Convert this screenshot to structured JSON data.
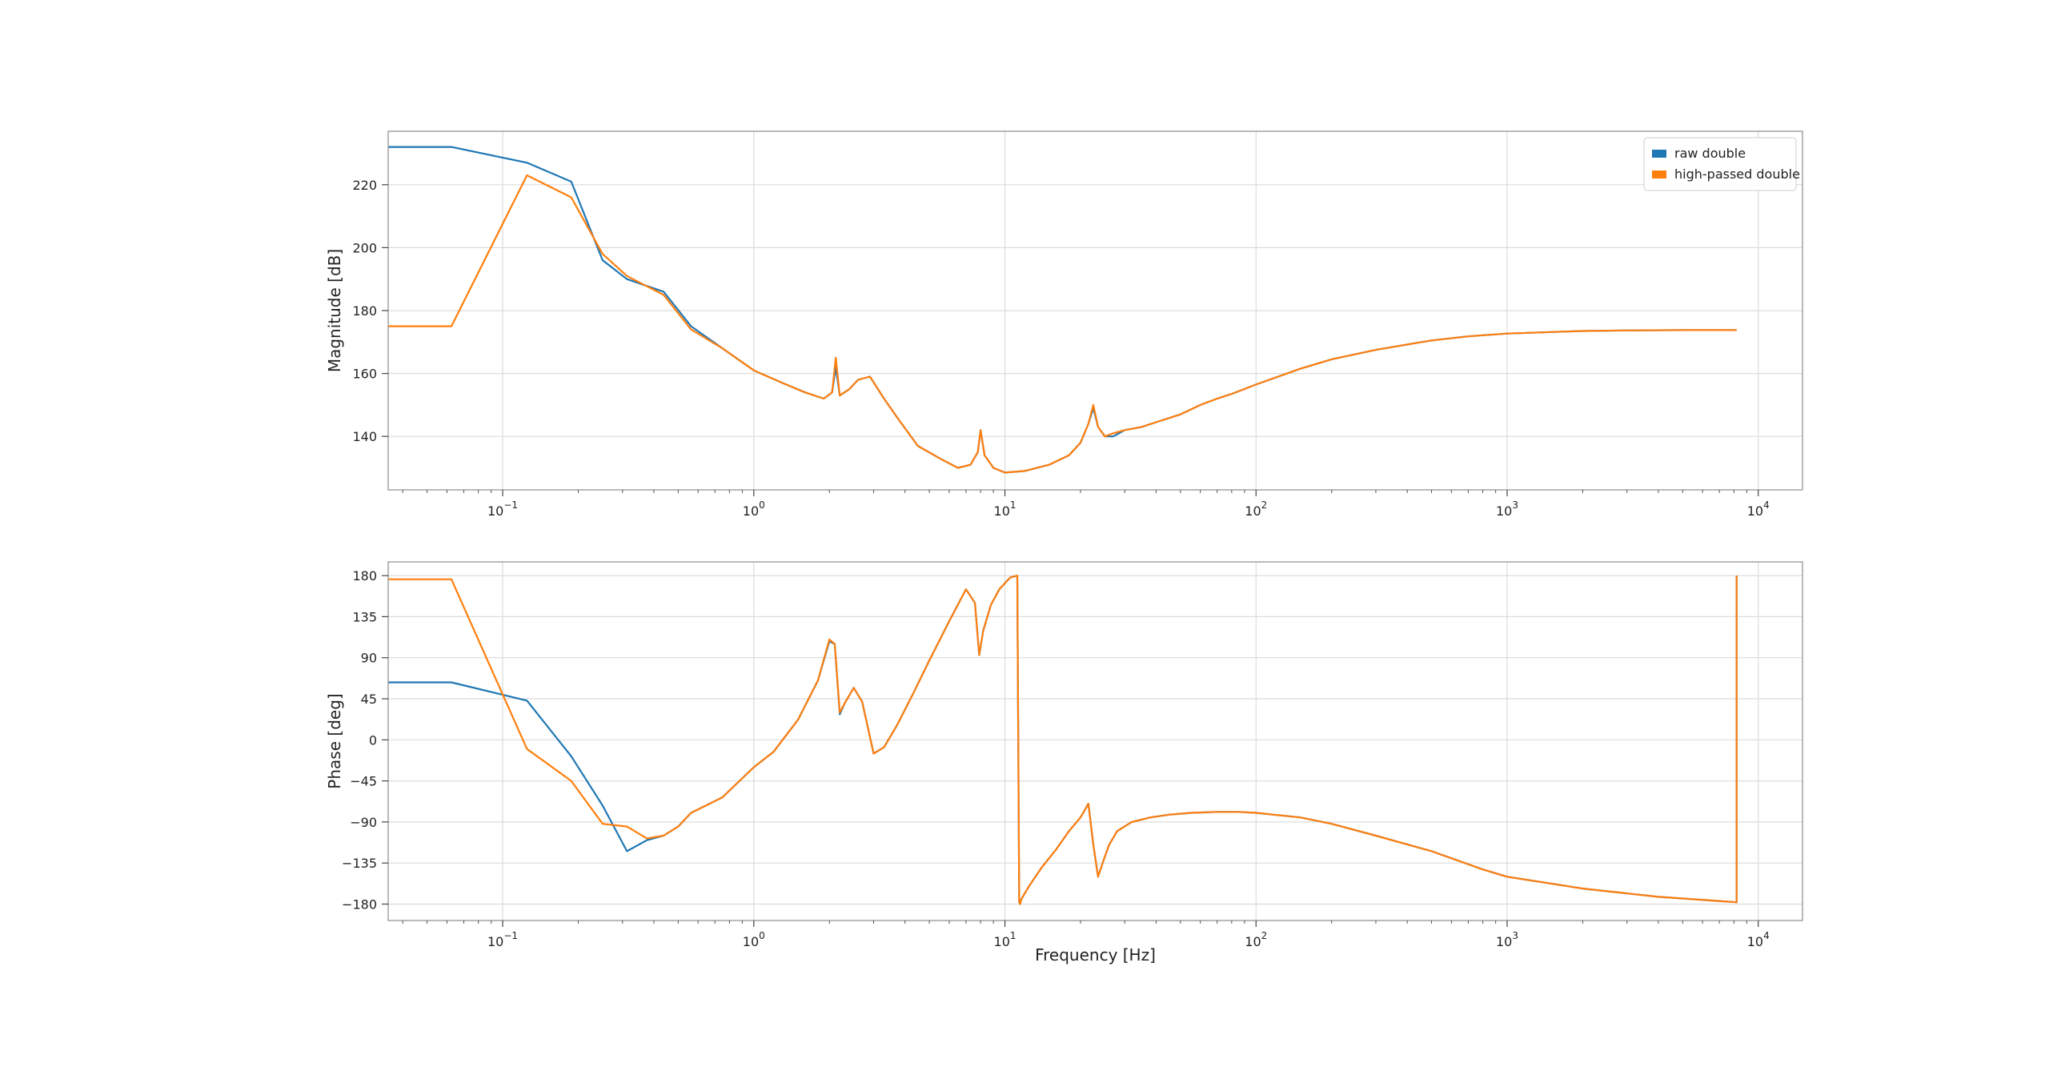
{
  "chart_data": [
    {
      "type": "line",
      "panel": "magnitude",
      "xscale": "log",
      "xlim": [
        0.035,
        15000
      ],
      "ylim": [
        123,
        237
      ],
      "xlabel": "",
      "ylabel": "Magnitude [dB]",
      "grid": true,
      "legend_position": "top-right",
      "x_ticks": [
        {
          "value": 0.1,
          "base": "10",
          "exp": "−1"
        },
        {
          "value": 1,
          "base": "10",
          "exp": "0"
        },
        {
          "value": 10,
          "base": "10",
          "exp": "1"
        },
        {
          "value": 100,
          "base": "10",
          "exp": "2"
        },
        {
          "value": 1000,
          "base": "10",
          "exp": "3"
        },
        {
          "value": 10000,
          "base": "10",
          "exp": "4"
        }
      ],
      "y_ticks": [
        {
          "value": 140,
          "label": "140"
        },
        {
          "value": 160,
          "label": "160"
        },
        {
          "value": 180,
          "label": "180"
        },
        {
          "value": 200,
          "label": "200"
        },
        {
          "value": 220,
          "label": "220"
        }
      ],
      "series": [
        {
          "name": "raw double",
          "color": "#1f77b4",
          "x": [
            0.035,
            0.0625,
            0.125,
            0.1875,
            0.25,
            0.3125,
            0.4375,
            0.5625,
            0.75,
            1.0,
            1.3,
            1.6,
            1.9,
            2.05,
            2.12,
            2.2,
            2.4,
            2.6,
            2.9,
            3.3,
            3.8,
            4.5,
            5.5,
            6.5,
            7.3,
            7.8,
            8.0,
            8.3,
            9.0,
            10.0,
            12,
            15,
            18,
            20,
            21.5,
            22.5,
            23.5,
            25,
            27,
            30,
            35,
            40,
            50,
            60,
            70,
            80,
            100,
            150,
            200,
            300,
            500,
            700,
            1000,
            2000,
            3000,
            5000,
            8200
          ],
          "y": [
            232,
            232,
            227,
            221,
            196,
            190,
            186,
            175,
            168,
            161,
            157,
            154,
            152,
            154,
            162,
            153,
            155,
            158,
            159,
            152,
            145,
            137,
            133,
            130,
            131,
            135,
            142,
            134,
            130,
            128.5,
            129,
            131,
            134,
            138,
            144,
            149,
            143,
            140,
            140,
            142,
            143,
            144.5,
            147,
            150,
            152,
            153.5,
            156.5,
            161.5,
            164.5,
            167.5,
            170.5,
            171.8,
            172.7,
            173.5,
            173.7,
            173.8,
            173.8
          ]
        },
        {
          "name": "high-passed double",
          "color": "#ff7f0e",
          "x": [
            0.035,
            0.0625,
            0.125,
            0.1875,
            0.25,
            0.3125,
            0.4375,
            0.5625,
            0.75,
            1.0,
            1.3,
            1.6,
            1.9,
            2.05,
            2.12,
            2.2,
            2.4,
            2.6,
            2.9,
            3.3,
            3.8,
            4.5,
            5.5,
            6.5,
            7.3,
            7.8,
            8.0,
            8.3,
            9.0,
            10.0,
            12,
            15,
            18,
            20,
            21.5,
            22.5,
            23.5,
            25,
            27,
            30,
            35,
            40,
            50,
            60,
            70,
            80,
            100,
            150,
            200,
            300,
            500,
            700,
            1000,
            2000,
            3000,
            5000,
            8200
          ],
          "y": [
            175,
            175,
            223,
            216,
            198,
            191,
            185,
            174,
            168,
            161,
            157,
            154,
            152,
            154,
            165,
            153,
            155,
            158,
            159,
            152,
            145,
            137,
            133,
            130,
            131,
            135,
            142,
            134,
            130,
            128.5,
            129,
            131,
            134,
            138,
            144,
            150,
            143,
            140,
            141,
            142,
            143,
            144.5,
            147,
            150,
            152,
            153.5,
            156.5,
            161.5,
            164.5,
            167.5,
            170.5,
            171.8,
            172.7,
            173.5,
            173.7,
            173.8,
            173.8
          ]
        }
      ]
    },
    {
      "type": "line",
      "panel": "phase",
      "xscale": "log",
      "xlim": [
        0.035,
        15000
      ],
      "ylim": [
        -198,
        195
      ],
      "xlabel": "Frequency [Hz]",
      "ylabel": "Phase [deg]",
      "grid": true,
      "x_ticks": [
        {
          "value": 0.1,
          "base": "10",
          "exp": "−1"
        },
        {
          "value": 1,
          "base": "10",
          "exp": "0"
        },
        {
          "value": 10,
          "base": "10",
          "exp": "1"
        },
        {
          "value": 100,
          "base": "10",
          "exp": "2"
        },
        {
          "value": 1000,
          "base": "10",
          "exp": "3"
        },
        {
          "value": 10000,
          "base": "10",
          "exp": "4"
        }
      ],
      "y_ticks": [
        {
          "value": -180,
          "label": "−180"
        },
        {
          "value": -135,
          "label": "−135"
        },
        {
          "value": -90,
          "label": "−90"
        },
        {
          "value": -45,
          "label": "−45"
        },
        {
          "value": 0,
          "label": "0"
        },
        {
          "value": 45,
          "label": "45"
        },
        {
          "value": 90,
          "label": "90"
        },
        {
          "value": 135,
          "label": "135"
        },
        {
          "value": 180,
          "label": "180"
        }
      ],
      "series": [
        {
          "name": "raw double",
          "color": "#1f77b4",
          "x": [
            0.035,
            0.0625,
            0.125,
            0.1875,
            0.25,
            0.3125,
            0.375,
            0.4375,
            0.5,
            0.5625,
            0.75,
            1.0,
            1.2,
            1.5,
            1.8,
            2.0,
            2.1,
            2.2,
            2.3,
            2.5,
            2.7,
            3.0,
            3.3,
            3.7,
            4.3,
            5.0,
            6.0,
            7.0,
            7.6,
            7.9,
            8.2,
            8.8,
            9.5,
            10.5,
            11.2,
            11.4,
            11.5,
            11.6,
            12.5,
            14,
            16,
            18,
            20,
            21.5,
            22.5,
            23.5,
            24.5,
            26,
            28,
            32,
            38,
            45,
            55,
            70,
            85,
            100,
            150,
            200,
            300,
            500,
            800,
            1000,
            2000,
            4000,
            8200,
            8201
          ],
          "y": [
            63,
            63,
            43,
            -18,
            -72,
            -122,
            -110,
            -105,
            -95,
            -80,
            -63,
            -30,
            -13,
            22,
            65,
            108,
            105,
            28,
            40,
            57,
            42,
            -15,
            -8,
            15,
            50,
            87,
            130,
            165,
            150,
            93,
            120,
            148,
            165,
            178,
            180,
            -178,
            -180,
            -175,
            -160,
            -140,
            -120,
            -100,
            -85,
            -70,
            -115,
            -150,
            -135,
            -115,
            -100,
            -90,
            -85,
            -82,
            -80,
            -79,
            -79,
            -80,
            -85,
            -92,
            -105,
            -122,
            -142,
            -150,
            -163,
            -172,
            -178,
            180
          ]
        },
        {
          "name": "high-passed double",
          "color": "#ff7f0e",
          "x": [
            0.035,
            0.0625,
            0.125,
            0.1875,
            0.25,
            0.3125,
            0.375,
            0.4375,
            0.5,
            0.5625,
            0.75,
            1.0,
            1.2,
            1.5,
            1.8,
            2.0,
            2.1,
            2.2,
            2.3,
            2.5,
            2.7,
            3.0,
            3.3,
            3.7,
            4.3,
            5.0,
            6.0,
            7.0,
            7.6,
            7.9,
            8.2,
            8.8,
            9.5,
            10.5,
            11.2,
            11.4,
            11.5,
            11.6,
            12.5,
            14,
            16,
            18,
            20,
            21.5,
            22.5,
            23.5,
            24.5,
            26,
            28,
            32,
            38,
            45,
            55,
            70,
            85,
            100,
            150,
            200,
            300,
            500,
            800,
            1000,
            2000,
            4000,
            8200,
            8201
          ],
          "y": [
            176,
            176,
            -10,
            -45,
            -92,
            -95,
            -108,
            -105,
            -95,
            -80,
            -63,
            -30,
            -13,
            22,
            65,
            110,
            105,
            30,
            40,
            57,
            42,
            -15,
            -8,
            15,
            50,
            87,
            130,
            165,
            150,
            93,
            120,
            148,
            165,
            178,
            180,
            -178,
            -180,
            -175,
            -160,
            -140,
            -120,
            -100,
            -85,
            -70,
            -115,
            -150,
            -135,
            -115,
            -100,
            -90,
            -85,
            -82,
            -80,
            -79,
            -79,
            -80,
            -85,
            -92,
            -105,
            -122,
            -142,
            -150,
            -163,
            -172,
            -178,
            180
          ]
        }
      ]
    }
  ]
}
